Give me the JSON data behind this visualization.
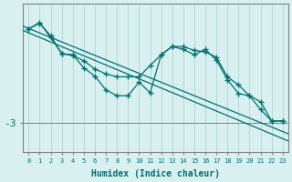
{
  "xlabel": "Humidex (Indice chaleur)",
  "bg_color": "#d8f0ef",
  "line_color": "#007070",
  "grid_color": "#b8d8d8",
  "axis_color": "#808080",
  "label_color": "#007070",
  "n": 24,
  "ylim": [
    -3.8,
    0.35
  ],
  "xlim": [
    -0.5,
    23.5
  ],
  "ytick_val": -3.0,
  "trend1_x": [
    -0.5,
    23.5
  ],
  "trend1_y": [
    -0.28,
    -3.3
  ],
  "trend2_x": [
    -0.5,
    23.5
  ],
  "trend2_y": [
    -0.4,
    -3.5
  ],
  "s2_y": [
    -0.35,
    -0.2,
    -0.55,
    -1.05,
    -1.1,
    -1.25,
    -1.48,
    -1.62,
    -1.7,
    -1.7,
    -1.7,
    -1.38,
    -1.08,
    -0.85,
    -0.93,
    -1.08,
    -0.93,
    -1.23,
    -1.78,
    -2.17,
    -2.23,
    -2.4,
    -2.94,
    -2.94
  ],
  "s3_y": [
    -0.35,
    -0.18,
    -0.6,
    -1.05,
    -1.08,
    -1.45,
    -1.68,
    -2.07,
    -2.23,
    -2.23,
    -1.85,
    -2.15,
    -1.08,
    -0.85,
    -0.85,
    -0.96,
    -1.0,
    -1.15,
    -1.7,
    -1.93,
    -2.23,
    -2.62,
    -2.94,
    -2.94
  ]
}
